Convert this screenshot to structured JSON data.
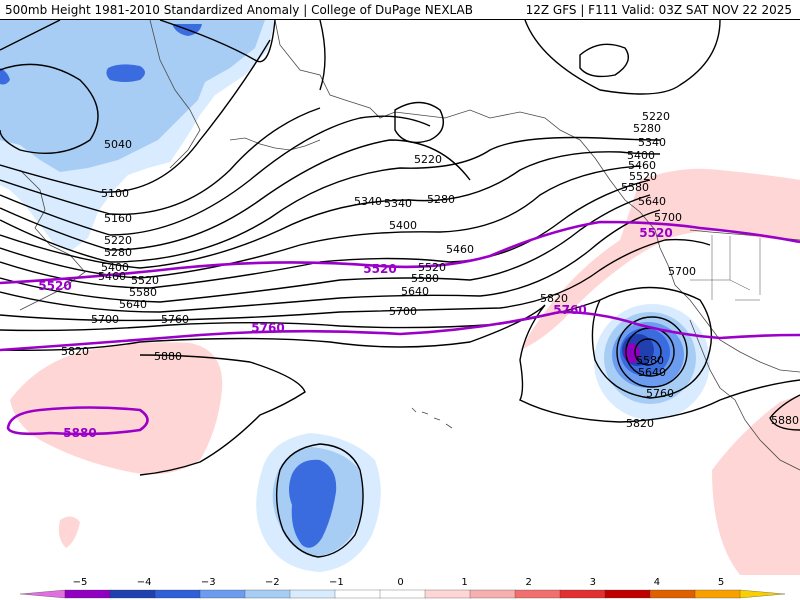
{
  "header": {
    "left_title": "500mb Height 1981-2010 Standardized Anomaly | College of DuPage NEXLAB",
    "right_title": "12Z GFS | F111 Valid: 03Z SAT NOV 22 2025"
  },
  "contour_labels": {
    "black": [
      "5040",
      "5100",
      "5160",
      "5220",
      "5280",
      "5400",
      "5460",
      "5520",
      "5580",
      "5640",
      "5700",
      "5760",
      "5820",
      "5880",
      "5340",
      "5220",
      "5280",
      "5340",
      "5400",
      "5460",
      "5520",
      "5580",
      "5640",
      "5700",
      "5220",
      "5280",
      "5340",
      "5400",
      "5460",
      "5520",
      "5580",
      "5640",
      "5700",
      "5700",
      "5820",
      "5580",
      "5640",
      "5760",
      "5820",
      "5880"
    ],
    "purple": [
      "5520",
      "5520",
      "5520",
      "5760",
      "5760",
      "5880"
    ]
  },
  "colorbar": {
    "ticks": [
      "−5",
      "−4",
      "−3",
      "−2",
      "−1",
      "0",
      "1",
      "2",
      "3",
      "4",
      "5"
    ],
    "colors": [
      "#e070e0",
      "#9000c0",
      "#2040b0",
      "#3060d8",
      "#6c9cf0",
      "#a8cdf5",
      "#d8ebff",
      "#ffffff",
      "#ffffff",
      "#ffd6d6",
      "#f7b0b0",
      "#f07070",
      "#e03030",
      "#c00000",
      "#e06000",
      "#f8a000",
      "#f8d000"
    ]
  },
  "palette": {
    "background": "#ffffff",
    "height_contour": "#000000",
    "purple_contour": "#9a00c8",
    "coastline": "#4a4a4a",
    "neg1": "#d8ebff",
    "neg2": "#a8cdf5",
    "neg3": "#6c9cf0",
    "neg4": "#3a6ce0",
    "neg5": "#2040b0",
    "neg6": "#9000c0",
    "pos1": "#ffd6d6"
  }
}
